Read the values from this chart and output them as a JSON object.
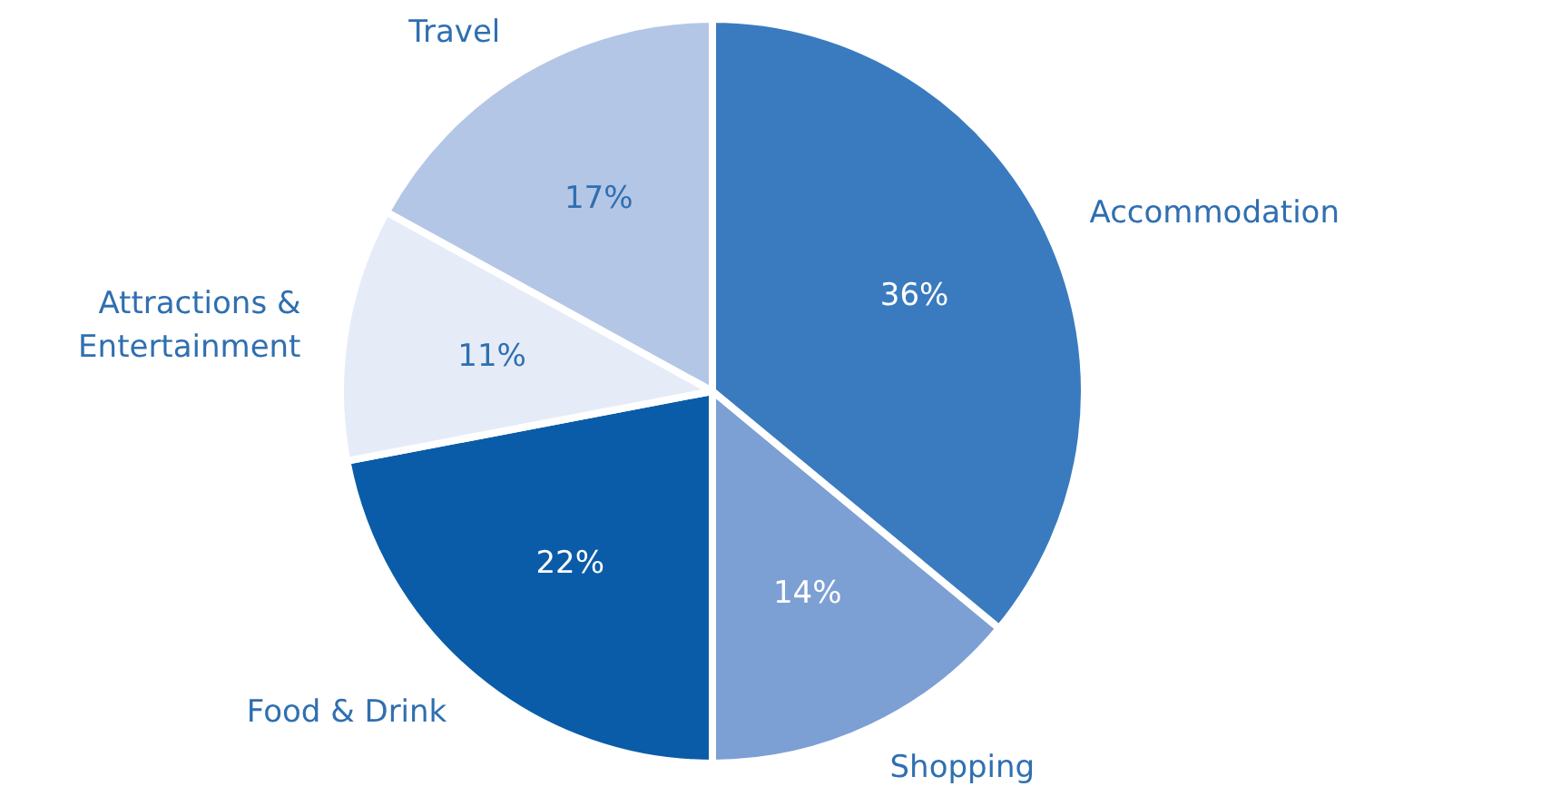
{
  "chart_data": {
    "type": "pie",
    "categories": [
      "Accommodation",
      "Shopping",
      "Food & Drink",
      "Attractions & Entertainment",
      "Travel"
    ],
    "values": [
      36,
      14,
      22,
      11,
      17
    ],
    "colors": [
      "#3a7bbf",
      "#7c9fd4",
      "#0a5ca8",
      "#e6ecf7",
      "#b4c6e6"
    ],
    "value_labels": [
      "36%",
      "14%",
      "22%",
      "11%",
      "17%"
    ]
  }
}
